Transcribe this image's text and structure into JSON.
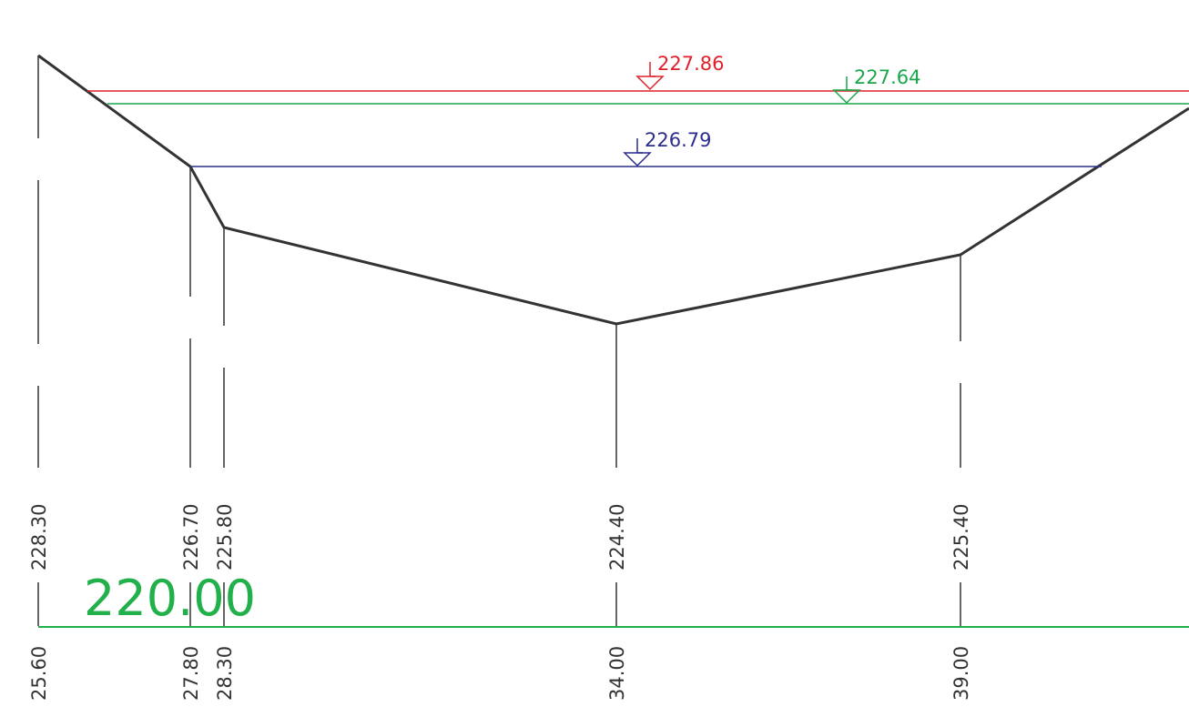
{
  "datum": {
    "label": "220.00",
    "color": "#22b04b"
  },
  "water_levels": [
    {
      "name": "level-red",
      "label": "227.86",
      "color": "#e0202a"
    },
    {
      "name": "level-green",
      "label": "227.64",
      "color": "#1aa64a"
    },
    {
      "name": "level-blue",
      "label": "226.79",
      "color": "#2b2e8c"
    }
  ],
  "stations": [
    {
      "elevation": "228.30",
      "offset": "25.60"
    },
    {
      "elevation": "226.70",
      "offset": "27.80"
    },
    {
      "elevation": "225.80",
      "offset": "28.30"
    },
    {
      "elevation": "224.40",
      "offset": "34.00"
    },
    {
      "elevation": "225.40",
      "offset": "39.00"
    }
  ],
  "colors": {
    "ground": "#333333",
    "text": "#333333"
  }
}
